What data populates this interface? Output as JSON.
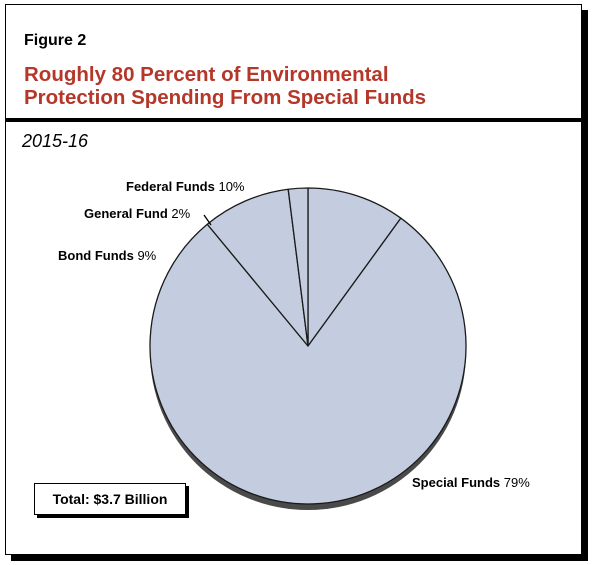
{
  "figure": {
    "label": "Figure 2",
    "title_line1": "Roughly 80 Percent of Environmental",
    "title_line2": "Protection Spending From Special Funds",
    "subtitle": "2015-16",
    "total": "Total: $3.7 Billion"
  },
  "colors": {
    "title": "#b5372a",
    "slice_fill": "#c4cde0",
    "slice_stroke": "#1a1a1a",
    "shadow": "#4a4a4a"
  },
  "chart_data": {
    "type": "pie",
    "title": "Roughly 80 Percent of Environmental Protection Spending From Special Funds",
    "subtitle": "2015-16",
    "slices": [
      {
        "name": "Federal Funds",
        "value": 10,
        "label": "10%"
      },
      {
        "name": "Special Funds",
        "value": 79,
        "label": "79%"
      },
      {
        "name": "Bond Funds",
        "value": 9,
        "label": "9%"
      },
      {
        "name": "General Fund",
        "value": 2,
        "label": "2%"
      }
    ],
    "legend": "none",
    "annotation": "Total: $3.7 Billion"
  }
}
